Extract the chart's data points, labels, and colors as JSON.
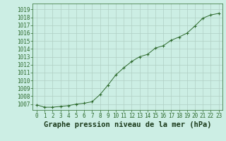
{
  "x": [
    0,
    1,
    2,
    3,
    4,
    5,
    6,
    7,
    8,
    9,
    10,
    11,
    12,
    13,
    14,
    15,
    16,
    17,
    18,
    19,
    20,
    21,
    22,
    23
  ],
  "y": [
    1006.9,
    1006.6,
    1006.6,
    1006.7,
    1006.8,
    1007.0,
    1007.1,
    1007.3,
    1008.2,
    1009.4,
    1010.7,
    1011.6,
    1012.4,
    1013.0,
    1013.3,
    1014.1,
    1014.4,
    1015.1,
    1015.5,
    1016.0,
    1016.9,
    1017.9,
    1018.3,
    1018.5
  ],
  "xlabel": "Graphe pression niveau de la mer (hPa)",
  "ylim": [
    1006.25,
    1019.75
  ],
  "xlim": [
    -0.5,
    23.5
  ],
  "yticks": [
    1007,
    1008,
    1009,
    1010,
    1011,
    1012,
    1013,
    1014,
    1015,
    1016,
    1017,
    1018,
    1019
  ],
  "xticks": [
    0,
    1,
    2,
    3,
    4,
    5,
    6,
    7,
    8,
    9,
    10,
    11,
    12,
    13,
    14,
    15,
    16,
    17,
    18,
    19,
    20,
    21,
    22,
    23
  ],
  "line_color": "#2d6a2d",
  "marker_color": "#2d6a2d",
  "bg_color": "#cceee4",
  "grid_color": "#b0cfc4",
  "xlabel_fontsize": 7.5,
  "tick_fontsize": 5.5
}
